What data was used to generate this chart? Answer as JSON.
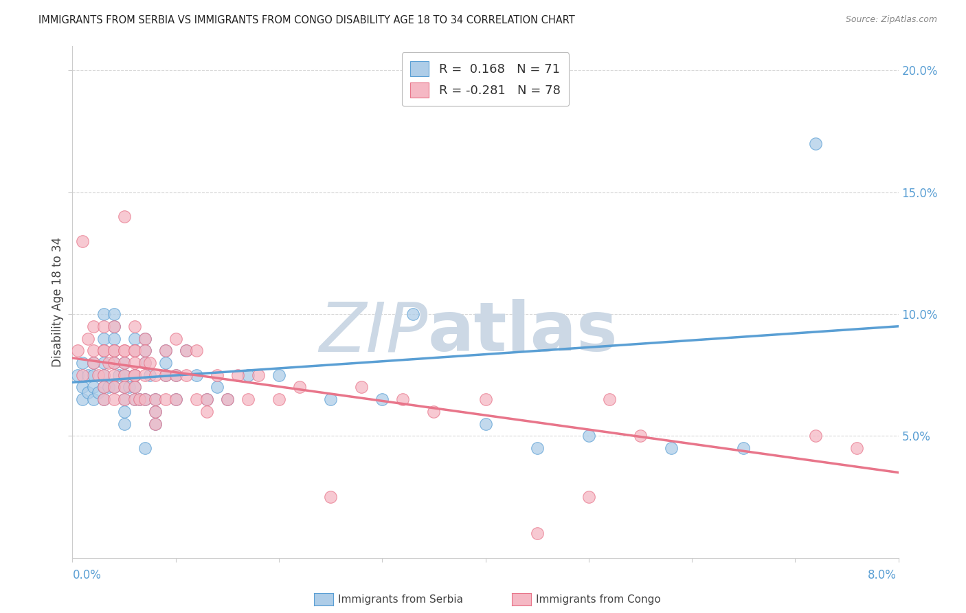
{
  "title": "IMMIGRANTS FROM SERBIA VS IMMIGRANTS FROM CONGO DISABILITY AGE 18 TO 34 CORRELATION CHART",
  "source": "Source: ZipAtlas.com",
  "ylabel": "Disability Age 18 to 34",
  "xlim": [
    0.0,
    0.08
  ],
  "ylim": [
    0.0,
    0.21
  ],
  "yticks": [
    0.05,
    0.1,
    0.15,
    0.2
  ],
  "ytick_labels": [
    "5.0%",
    "10.0%",
    "15.0%",
    "20.0%"
  ],
  "xtick_positions": [
    0.0,
    0.01,
    0.02,
    0.03,
    0.04,
    0.05,
    0.06,
    0.07,
    0.08
  ],
  "serbia_R": "0.168",
  "serbia_N": "71",
  "congo_R": "-0.281",
  "congo_N": "78",
  "serbia_fill": "#aecde8",
  "congo_fill": "#f5b8c4",
  "serbia_edge": "#5a9fd4",
  "congo_edge": "#e8758a",
  "watermark_color": "#ccd8e5",
  "grid_color": "#d8d8d8",
  "serbia_line_x": [
    0.0,
    0.08
  ],
  "serbia_line_y": [
    0.072,
    0.095
  ],
  "congo_line_x": [
    0.0,
    0.08
  ],
  "congo_line_y": [
    0.082,
    0.035
  ],
  "serbia_x": [
    0.0005,
    0.001,
    0.001,
    0.001,
    0.0015,
    0.0015,
    0.002,
    0.002,
    0.002,
    0.002,
    0.0025,
    0.003,
    0.003,
    0.003,
    0.003,
    0.003,
    0.003,
    0.003,
    0.0035,
    0.004,
    0.004,
    0.004,
    0.004,
    0.004,
    0.004,
    0.0045,
    0.005,
    0.005,
    0.005,
    0.005,
    0.005,
    0.005,
    0.005,
    0.0055,
    0.006,
    0.006,
    0.006,
    0.006,
    0.006,
    0.006,
    0.0065,
    0.007,
    0.007,
    0.007,
    0.007,
    0.007,
    0.0075,
    0.008,
    0.008,
    0.008,
    0.009,
    0.009,
    0.009,
    0.01,
    0.01,
    0.011,
    0.012,
    0.013,
    0.014,
    0.015,
    0.017,
    0.02,
    0.025,
    0.03,
    0.033,
    0.04,
    0.045,
    0.05,
    0.058,
    0.065,
    0.072
  ],
  "serbia_y": [
    0.075,
    0.065,
    0.07,
    0.08,
    0.075,
    0.068,
    0.08,
    0.075,
    0.07,
    0.065,
    0.068,
    0.08,
    0.085,
    0.09,
    0.1,
    0.075,
    0.07,
    0.065,
    0.07,
    0.08,
    0.085,
    0.09,
    0.095,
    0.1,
    0.07,
    0.075,
    0.08,
    0.075,
    0.07,
    0.065,
    0.06,
    0.055,
    0.075,
    0.07,
    0.085,
    0.09,
    0.075,
    0.07,
    0.065,
    0.075,
    0.065,
    0.09,
    0.085,
    0.08,
    0.045,
    0.065,
    0.075,
    0.065,
    0.06,
    0.055,
    0.075,
    0.08,
    0.085,
    0.075,
    0.065,
    0.085,
    0.075,
    0.065,
    0.07,
    0.065,
    0.075,
    0.075,
    0.065,
    0.065,
    0.1,
    0.055,
    0.045,
    0.05,
    0.045,
    0.045,
    0.17
  ],
  "congo_x": [
    0.0005,
    0.001,
    0.001,
    0.0015,
    0.002,
    0.002,
    0.002,
    0.0025,
    0.003,
    0.003,
    0.003,
    0.003,
    0.003,
    0.003,
    0.0035,
    0.004,
    0.004,
    0.004,
    0.004,
    0.004,
    0.004,
    0.004,
    0.005,
    0.005,
    0.005,
    0.005,
    0.005,
    0.005,
    0.005,
    0.006,
    0.006,
    0.006,
    0.006,
    0.006,
    0.006,
    0.006,
    0.006,
    0.0065,
    0.007,
    0.007,
    0.007,
    0.007,
    0.007,
    0.0075,
    0.008,
    0.008,
    0.008,
    0.008,
    0.009,
    0.009,
    0.009,
    0.01,
    0.01,
    0.01,
    0.011,
    0.011,
    0.012,
    0.012,
    0.013,
    0.013,
    0.014,
    0.015,
    0.016,
    0.017,
    0.018,
    0.02,
    0.022,
    0.025,
    0.028,
    0.032,
    0.035,
    0.04,
    0.045,
    0.05,
    0.052,
    0.055,
    0.072,
    0.076
  ],
  "congo_y": [
    0.085,
    0.13,
    0.075,
    0.09,
    0.085,
    0.08,
    0.095,
    0.075,
    0.085,
    0.075,
    0.07,
    0.065,
    0.095,
    0.085,
    0.08,
    0.085,
    0.08,
    0.075,
    0.07,
    0.065,
    0.095,
    0.085,
    0.085,
    0.08,
    0.075,
    0.07,
    0.065,
    0.14,
    0.085,
    0.085,
    0.075,
    0.07,
    0.065,
    0.095,
    0.085,
    0.08,
    0.075,
    0.065,
    0.08,
    0.075,
    0.09,
    0.085,
    0.065,
    0.08,
    0.075,
    0.065,
    0.06,
    0.055,
    0.075,
    0.065,
    0.085,
    0.075,
    0.065,
    0.09,
    0.085,
    0.075,
    0.065,
    0.085,
    0.065,
    0.06,
    0.075,
    0.065,
    0.075,
    0.065,
    0.075,
    0.065,
    0.07,
    0.025,
    0.07,
    0.065,
    0.06,
    0.065,
    0.01,
    0.025,
    0.065,
    0.05,
    0.05,
    0.045
  ]
}
